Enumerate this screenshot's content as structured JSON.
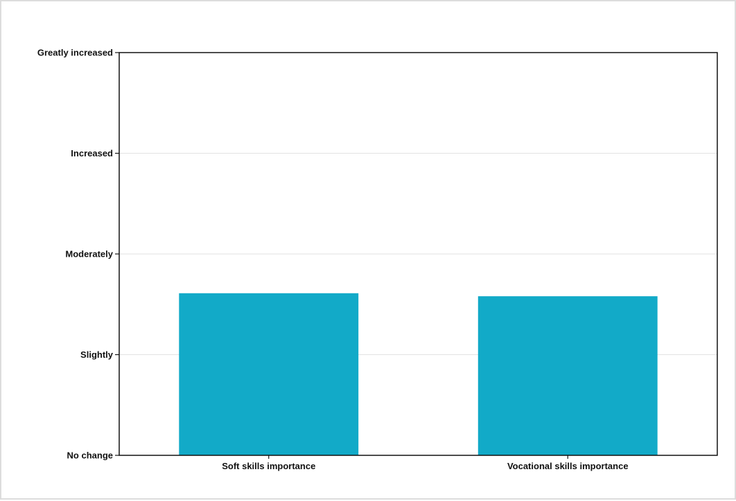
{
  "chart_data": {
    "type": "bar",
    "categories": [
      "Soft skills importance",
      "Vocational skills importance"
    ],
    "values": [
      1.61,
      1.58
    ],
    "ylim": [
      0,
      4
    ],
    "yticks": [
      {
        "value": 0,
        "label": "No change"
      },
      {
        "value": 1,
        "label": "Slightly"
      },
      {
        "value": 2,
        "label": "Moderately"
      },
      {
        "value": 3,
        "label": "Increased"
      },
      {
        "value": 4,
        "label": "Greatly increased"
      }
    ],
    "grid": true,
    "bar_color": "#12aac8",
    "title": "",
    "xlabel": "",
    "ylabel": ""
  }
}
